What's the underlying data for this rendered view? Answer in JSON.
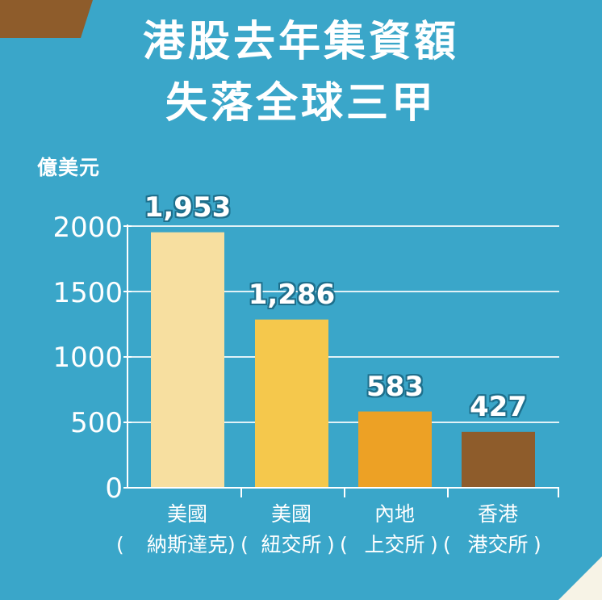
{
  "title": {
    "line1": "港股去年集資額",
    "line2": "失落全球三甲"
  },
  "colors": {
    "background": "#3aa6c9",
    "corner": "#f7f3e6",
    "bar_nasdaq": "#f7dfa0",
    "bar_nyse": "#f5c84c",
    "bar_sse": "#eda125",
    "bar_hkex": "#8e5c2b",
    "unit_box": "#8e5c2b"
  },
  "chart_data": {
    "type": "bar",
    "ylabel": "億美元",
    "ylim": [
      0,
      2000
    ],
    "yticks": [
      "0",
      "500",
      "1000",
      "1500",
      "2000"
    ],
    "grid": true,
    "categories": [
      {
        "line1": "美國",
        "line2": "納斯達克"
      },
      {
        "line1": "美國",
        "line2": "紐交所"
      },
      {
        "line1": "內地",
        "line2": "上交所"
      },
      {
        "line1": "香港",
        "line2": "港交所"
      }
    ],
    "values": [
      1953,
      1286,
      583,
      427
    ],
    "data_labels": [
      "1,953",
      "1,286",
      "583",
      "427"
    ]
  }
}
